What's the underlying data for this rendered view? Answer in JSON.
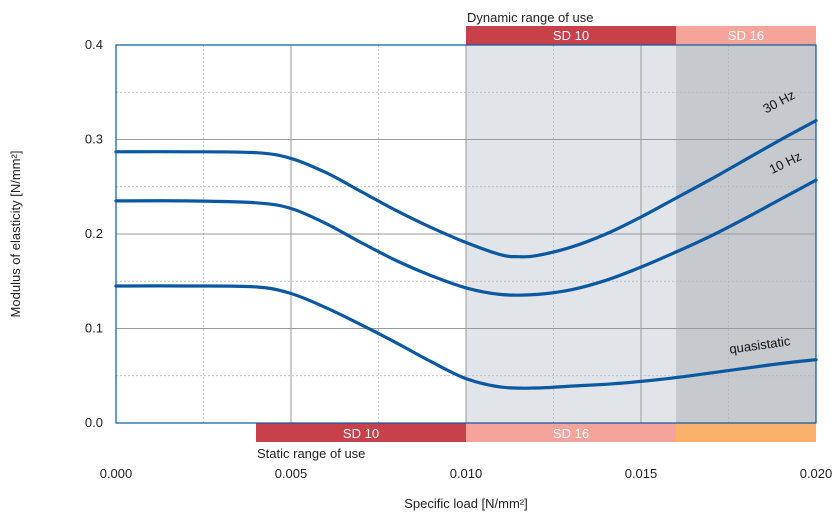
{
  "chart_data": {
    "type": "line",
    "xlabel": "Specific load [N/mm²]",
    "ylabel": "Modulus of elasticity [N/mm²]",
    "xlim": [
      0.0,
      0.02
    ],
    "ylim": [
      0.0,
      0.4
    ],
    "x_ticks": [
      "0.000",
      "0.005",
      "0.010",
      "0.015",
      "0.020"
    ],
    "y_ticks": [
      "0.0",
      "0.1",
      "0.2",
      "0.3",
      "0.4"
    ],
    "grid": "solid major, dotted minor",
    "dynamic_range_label": "Dynamic range of use",
    "static_range_label": "Static range of use",
    "dynamic_bands": [
      {
        "label": "SD 10",
        "x_start": 0.01,
        "x_end": 0.016,
        "color": "#c8404a"
      },
      {
        "label": "SD 16",
        "x_start": 0.016,
        "x_end": 0.02,
        "color": "#f4a49a"
      }
    ],
    "static_bands": [
      {
        "label": "SD 10",
        "x_start": 0.004,
        "x_end": 0.01,
        "color": "#c8404a"
      },
      {
        "label": "SD 16",
        "x_start": 0.01,
        "x_end": 0.016,
        "color": "#f4a49a"
      },
      {
        "label": "",
        "x_start": 0.016,
        "x_end": 0.02,
        "color": "#f9b06a"
      }
    ],
    "shaded_regions": [
      {
        "x_start": 0.01,
        "x_end": 0.016,
        "color": "#e1e4e8"
      },
      {
        "x_start": 0.016,
        "x_end": 0.02,
        "color": "#c6c9cd"
      }
    ],
    "series": [
      {
        "name": "30 Hz",
        "color": "#0a58a0",
        "x": [
          0.0,
          0.002,
          0.004,
          0.005,
          0.006,
          0.007,
          0.008,
          0.009,
          0.01,
          0.011,
          0.0115,
          0.012,
          0.013,
          0.014,
          0.015,
          0.016,
          0.017,
          0.018,
          0.019,
          0.02
        ],
        "y": [
          0.287,
          0.287,
          0.286,
          0.28,
          0.265,
          0.245,
          0.225,
          0.207,
          0.191,
          0.178,
          0.176,
          0.177,
          0.186,
          0.2,
          0.218,
          0.238,
          0.258,
          0.279,
          0.3,
          0.32
        ]
      },
      {
        "name": "10 Hz",
        "color": "#0a58a0",
        "x": [
          0.0,
          0.002,
          0.004,
          0.005,
          0.006,
          0.007,
          0.008,
          0.009,
          0.01,
          0.011,
          0.012,
          0.013,
          0.014,
          0.015,
          0.016,
          0.017,
          0.018,
          0.019,
          0.02
        ],
        "y": [
          0.235,
          0.235,
          0.233,
          0.227,
          0.211,
          0.191,
          0.172,
          0.156,
          0.143,
          0.136,
          0.136,
          0.141,
          0.151,
          0.165,
          0.181,
          0.198,
          0.217,
          0.237,
          0.257
        ]
      },
      {
        "name": "quasistatic",
        "color": "#0a58a0",
        "x": [
          0.0,
          0.002,
          0.004,
          0.005,
          0.006,
          0.007,
          0.008,
          0.009,
          0.01,
          0.011,
          0.012,
          0.013,
          0.014,
          0.015,
          0.016,
          0.017,
          0.018,
          0.019,
          0.02
        ],
        "y": [
          0.145,
          0.145,
          0.144,
          0.137,
          0.122,
          0.104,
          0.085,
          0.065,
          0.047,
          0.038,
          0.037,
          0.039,
          0.041,
          0.044,
          0.048,
          0.053,
          0.058,
          0.063,
          0.067
        ]
      }
    ]
  }
}
